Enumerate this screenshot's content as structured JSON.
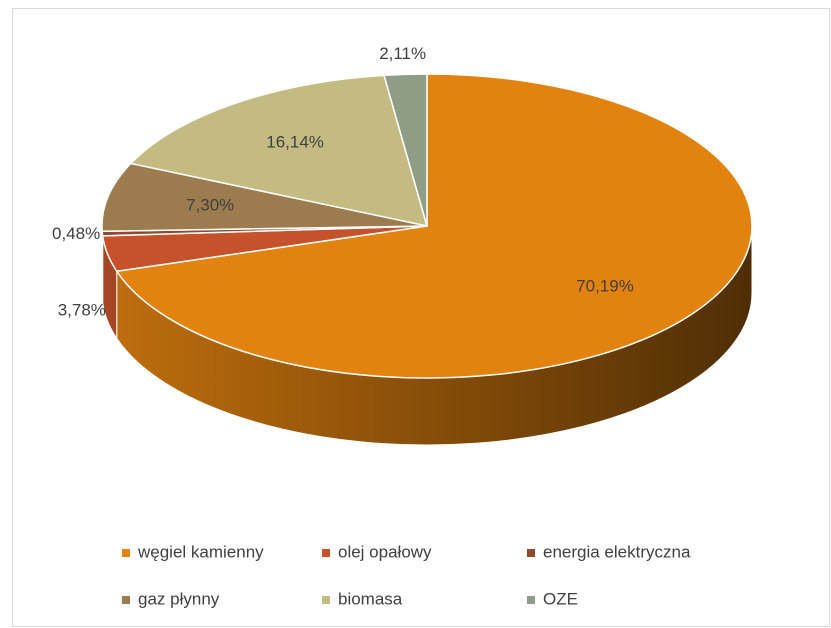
{
  "chart_data": {
    "type": "pie",
    "start": "top",
    "direction": "clockwise",
    "depth3d": true,
    "categories": [
      "węgiel kamienny",
      "olej opałowy",
      "energia elektryczna",
      "gaz płynny",
      "biomasa",
      "OZE"
    ],
    "values": [
      70.19,
      3.78,
      0.48,
      7.3,
      16.14,
      2.11
    ],
    "value_labels": [
      "70,19%",
      "3,78%",
      "0,48%",
      "7,30%",
      "16,14%",
      "2,11%"
    ],
    "colors": [
      "#e2820f",
      "#c5522b",
      "#8e4a2c",
      "#9c7b4e",
      "#c4bb83",
      "#8e9e86"
    ],
    "legend": "bottom"
  }
}
